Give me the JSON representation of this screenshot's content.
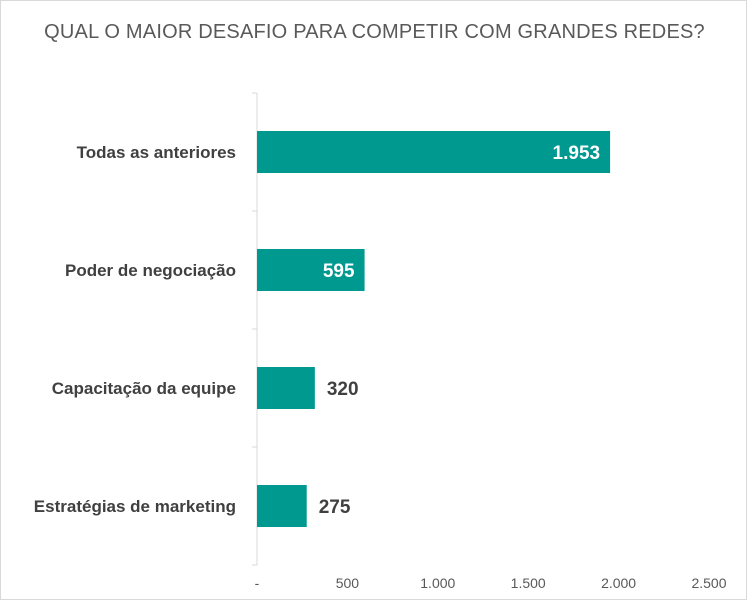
{
  "chart_data": {
    "type": "bar",
    "orientation": "horizontal",
    "title": "QUAL O MAIOR DESAFIO PARA COMPETIR COM GRANDES REDES?",
    "categories": [
      "Todas as anteriores",
      "Poder de negociação",
      "Capacitação da equipe",
      "Estratégias de marketing"
    ],
    "values": [
      1953,
      595,
      320,
      275
    ],
    "value_labels": [
      "1.953",
      "595",
      "320",
      "275"
    ],
    "x_ticks": [
      "-",
      "500",
      "1.000",
      "1.500",
      "2.000",
      "2.500"
    ],
    "x_tick_values": [
      0,
      500,
      1000,
      1500,
      2000,
      2500
    ],
    "xlim": [
      0,
      2500
    ],
    "xlabel": "",
    "ylabel": "",
    "grid": false,
    "bar_color": "#009990",
    "label_inside_color": "#ffffff",
    "label_outside_color": "#404040"
  }
}
